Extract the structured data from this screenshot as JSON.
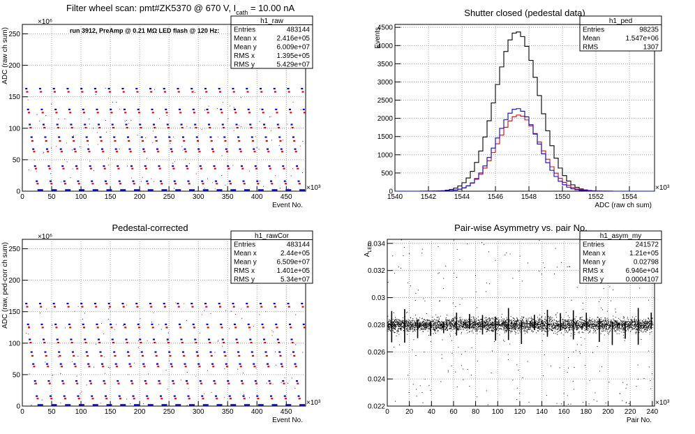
{
  "chart_data": [
    {
      "type": "scatter",
      "title_main": "Filter wheel scan: pmt#ZK5370 @   670 V, I",
      "title_sub": "cath",
      "title_tail": " = 10.00 nA",
      "annotation": "run 3912, PreAmp @ 0.21 MΩ LED flash @  120 Hz:",
      "xlabel": "Event No.",
      "ylabel": "ADC (raw ch sum)",
      "x_exponent": "×10³",
      "y_exponent": "×10⁶",
      "xlim": [
        0,
        483
      ],
      "ylim": [
        0,
        265
      ],
      "x_ticks": [
        0,
        50,
        100,
        150,
        200,
        250,
        300,
        350,
        400,
        450
      ],
      "y_ticks": [
        0,
        50,
        100,
        150,
        200,
        250
      ],
      "grid": true,
      "period_kevents": 23.5,
      "step_levels": [
        {
          "y": 163,
          "color": "#0000ee"
        },
        {
          "y": 158,
          "color": "#ee0000"
        },
        {
          "y": 130,
          "color": "#0000ee"
        },
        {
          "y": 125,
          "color": "#ee0000"
        },
        {
          "y": 106,
          "color": "#0000ee"
        },
        {
          "y": 101,
          "color": "#ee0000"
        },
        {
          "y": 86,
          "color": "#0000ee"
        },
        {
          "y": 80,
          "color": "#ee0000"
        },
        {
          "y": 67,
          "color": "#0000ee"
        },
        {
          "y": 63,
          "color": "#ee0000"
        },
        {
          "y": 40,
          "color": "#0000ee"
        },
        {
          "y": 36,
          "color": "#ee0000"
        },
        {
          "y": 16,
          "color": "#0000ee"
        },
        {
          "y": 12,
          "color": "#ee0000"
        },
        {
          "y": 2,
          "color": "#0000ee"
        }
      ],
      "stats": {
        "name": "h1_raw",
        "rows": [
          [
            "Entries",
            "483144"
          ],
          [
            "Mean x",
            "2.416e+05"
          ],
          [
            "Mean y",
            "6.009e+07"
          ],
          [
            "RMS x",
            "1.395e+05"
          ],
          [
            "RMS y",
            "5.429e+07"
          ]
        ]
      }
    },
    {
      "type": "line",
      "title_main": "Shutter closed (pedestal data)",
      "xlabel": "ADC (raw ch sum)",
      "ylabel": "Events",
      "x_exponent": "×10³",
      "xlim": [
        1540,
        1555.5
      ],
      "ylim": [
        0,
        4580
      ],
      "x_ticks": [
        1540,
        1542,
        1544,
        1546,
        1548,
        1550,
        1552,
        1554
      ],
      "y_ticks": [
        0,
        500,
        1000,
        1500,
        2000,
        2500,
        3000,
        3500,
        4000,
        4500
      ],
      "grid": true,
      "series": [
        {
          "color": "#000000",
          "mean": 1547.3,
          "sigma": 1.31,
          "peak": 4380,
          "step": 0.25
        },
        {
          "color": "#ee0000",
          "mean": 1547.4,
          "sigma": 1.31,
          "peak": 2090,
          "step": 0.25
        },
        {
          "color": "#0000ee",
          "mean": 1547.3,
          "sigma": 1.25,
          "peak": 2270,
          "step": 0.25
        }
      ],
      "stats": {
        "name": "h1_ped",
        "rows": [
          [
            "Entries",
            "98235"
          ],
          [
            "Mean",
            "1.547e+06"
          ],
          [
            "RMS",
            "1307"
          ]
        ]
      }
    },
    {
      "type": "scatter",
      "title_main": "Pedestal-corrected",
      "xlabel": "Event No.",
      "ylabel": "ADC (raw, ped-corr ch sum)",
      "x_exponent": "×10³",
      "y_exponent": "×10⁶",
      "xlim": [
        0,
        483
      ],
      "ylim": [
        0,
        265
      ],
      "x_ticks": [
        0,
        50,
        100,
        150,
        200,
        250,
        300,
        350,
        400,
        450
      ],
      "y_ticks": [
        0,
        50,
        100,
        150,
        200,
        250
      ],
      "grid": true,
      "period_kevents": 23.5,
      "step_levels": [
        {
          "y": 163,
          "color": "#0000ee"
        },
        {
          "y": 158,
          "color": "#ee0000"
        },
        {
          "y": 130,
          "color": "#0000ee"
        },
        {
          "y": 125,
          "color": "#ee0000"
        },
        {
          "y": 106,
          "color": "#0000ee"
        },
        {
          "y": 101,
          "color": "#ee0000"
        },
        {
          "y": 86,
          "color": "#0000ee"
        },
        {
          "y": 80,
          "color": "#ee0000"
        },
        {
          "y": 67,
          "color": "#0000ee"
        },
        {
          "y": 63,
          "color": "#ee0000"
        },
        {
          "y": 40,
          "color": "#0000ee"
        },
        {
          "y": 36,
          "color": "#ee0000"
        },
        {
          "y": 16,
          "color": "#0000ee"
        },
        {
          "y": 12,
          "color": "#ee0000"
        },
        {
          "y": 2,
          "color": "#0000ee"
        }
      ],
      "stats": {
        "name": "h1_rawCor",
        "rows": [
          [
            "Entries",
            "483144"
          ],
          [
            "Mean x",
            "2.44e+05"
          ],
          [
            "Mean y",
            "6.509e+07"
          ],
          [
            "RMS x",
            "1.401e+05"
          ],
          [
            "RMS y",
            "5.34e+07"
          ]
        ]
      }
    },
    {
      "type": "scatter",
      "title_main": "Pair-wise Asymmetry vs. pair No.",
      "xlabel": "Pair No.",
      "ylabel_main": "A",
      "ylabel_sub": "LED",
      "x_exponent": "×10³",
      "xlim": [
        0,
        242
      ],
      "ylim": [
        0.022,
        0.0343
      ],
      "x_ticks": [
        0,
        20,
        40,
        60,
        80,
        100,
        120,
        140,
        160,
        180,
        200,
        220,
        240
      ],
      "x_tick_labels": [
        "0",
        "20",
        "40",
        "60",
        "80",
        "100",
        "120",
        "140",
        "160",
        "180",
        "200",
        "220",
        "240"
      ],
      "y_ticks": [
        0.022,
        0.024,
        0.026,
        0.028,
        0.03,
        0.032,
        0.034
      ],
      "y_tick_labels": [
        "0.022",
        "0.024",
        "0.026",
        "0.028",
        "0.03",
        "0.032",
        "0.034"
      ],
      "grid": true,
      "band_center": 0.028,
      "band_halfwidth": 0.0004,
      "spike_period": 11.75,
      "color": "#000000",
      "stats": {
        "name": "h1_asym_my",
        "rows": [
          [
            "Entries",
            "241572"
          ],
          [
            "Mean x",
            "1.21e+05"
          ],
          [
            "Mean y",
            "0.02798"
          ],
          [
            "RMS x",
            "6.946e+04"
          ],
          [
            "RMS y",
            "0.0004107"
          ]
        ]
      }
    }
  ]
}
